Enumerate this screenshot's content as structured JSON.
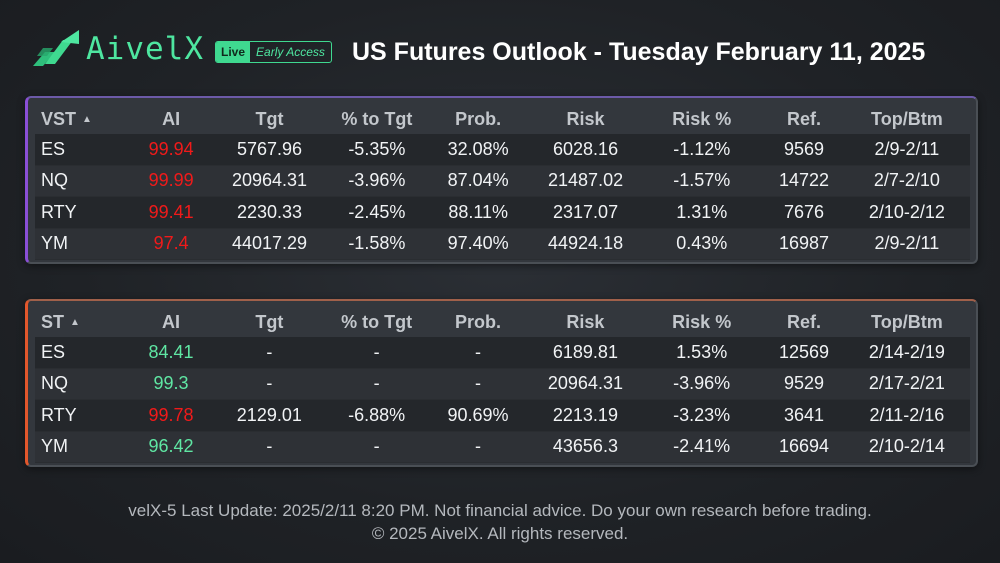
{
  "header": {
    "brand": "AivelX",
    "badge_live": "Live",
    "badge_early": "Early Access",
    "title": "US Futures Outlook - Tuesday February 11, 2025"
  },
  "colors": {
    "accent": "#3fd990",
    "vst_border": "#8a4fd6",
    "st_border": "#e2572c",
    "ai_red": "#f01a1a",
    "ai_green": "#5fe6a3"
  },
  "vst": {
    "columns": [
      "VST",
      "AI",
      "Tgt",
      "% to Tgt",
      "Prob.",
      "Risk",
      "Risk %",
      "Ref.",
      "Top/Btm"
    ],
    "rows": [
      {
        "sym": "ES",
        "ai": "99.94",
        "ai_color": "red",
        "tgt": "5767.96",
        "pct": "-5.35%",
        "prob": "32.08%",
        "risk": "6028.16",
        "riskpct": "-1.12%",
        "ref": "9569",
        "tb": "2/9-2/11"
      },
      {
        "sym": "NQ",
        "ai": "99.99",
        "ai_color": "red",
        "tgt": "20964.31",
        "pct": "-3.96%",
        "prob": "87.04%",
        "risk": "21487.02",
        "riskpct": "-1.57%",
        "ref": "14722",
        "tb": "2/7-2/10"
      },
      {
        "sym": "RTY",
        "ai": "99.41",
        "ai_color": "red",
        "tgt": "2230.33",
        "pct": "-2.45%",
        "prob": "88.11%",
        "risk": "2317.07",
        "riskpct": "1.31%",
        "ref": "7676",
        "tb": "2/10-2/12"
      },
      {
        "sym": "YM",
        "ai": "97.4",
        "ai_color": "red",
        "tgt": "44017.29",
        "pct": "-1.58%",
        "prob": "97.40%",
        "risk": "44924.18",
        "riskpct": "0.43%",
        "ref": "16987",
        "tb": "2/9-2/11"
      }
    ]
  },
  "st": {
    "columns": [
      "ST",
      "AI",
      "Tgt",
      "% to Tgt",
      "Prob.",
      "Risk",
      "Risk %",
      "Ref.",
      "Top/Btm"
    ],
    "rows": [
      {
        "sym": "ES",
        "ai": "84.41",
        "ai_color": "green",
        "tgt": "-",
        "pct": "-",
        "prob": "-",
        "risk": "6189.81",
        "riskpct": "1.53%",
        "ref": "12569",
        "tb": "2/14-2/19"
      },
      {
        "sym": "NQ",
        "ai": "99.3",
        "ai_color": "green",
        "tgt": "-",
        "pct": "-",
        "prob": "-",
        "risk": "20964.31",
        "riskpct": "-3.96%",
        "ref": "9529",
        "tb": "2/17-2/21"
      },
      {
        "sym": "RTY",
        "ai": "99.78",
        "ai_color": "red",
        "tgt": "2129.01",
        "pct": "-6.88%",
        "prob": "90.69%",
        "risk": "2213.19",
        "riskpct": "-3.23%",
        "ref": "3641",
        "tb": "2/11-2/16"
      },
      {
        "sym": "YM",
        "ai": "96.42",
        "ai_color": "green",
        "tgt": "-",
        "pct": "-",
        "prob": "-",
        "risk": "43656.3",
        "riskpct": "-2.41%",
        "ref": "16694",
        "tb": "2/10-2/14"
      }
    ]
  },
  "footer": {
    "line1": "velX-5 Last Update: 2025/2/11 8:20 PM. Not financial advice. Do your own research before trading.",
    "line2": "© 2025 AivelX. All rights reserved."
  }
}
